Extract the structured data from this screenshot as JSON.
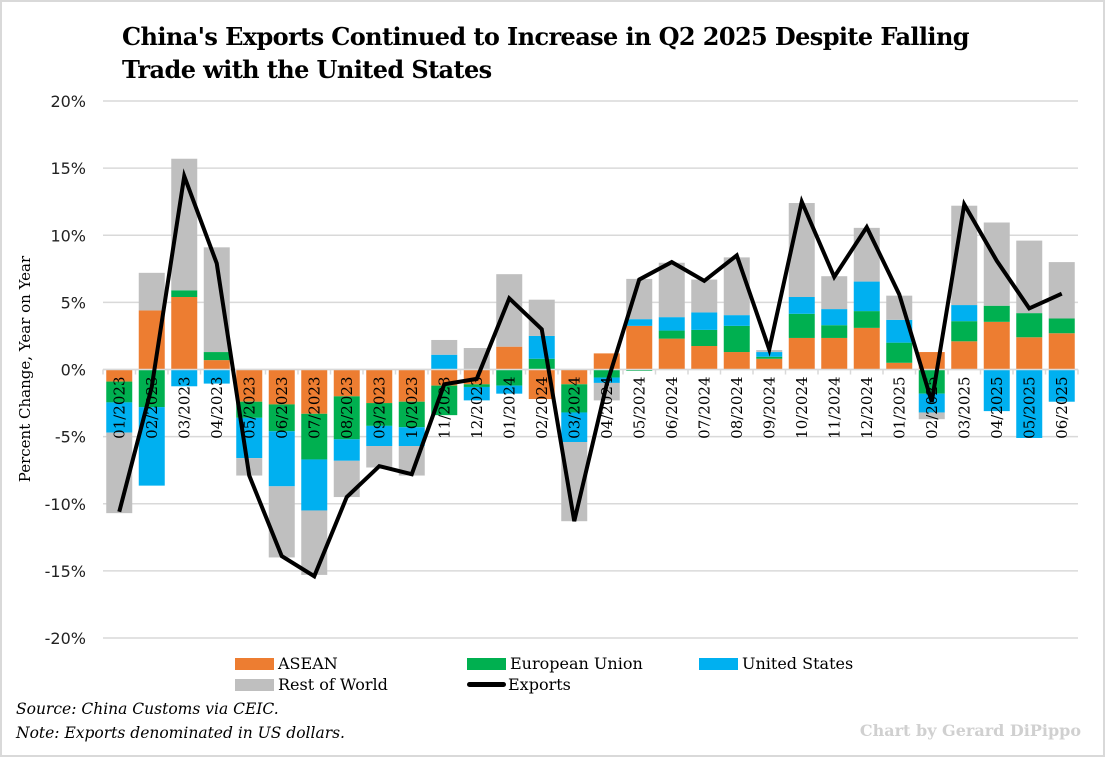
{
  "chart_data": {
    "type": "bar",
    "subtype": "stacked-bar-with-line",
    "title": "China's Exports Continued to Increase in Q2 2025 Despite Falling Trade with the United States",
    "xlabel": "",
    "ylabel": "Percent Change, Year on Year",
    "ylim": [
      -20,
      20
    ],
    "yticks": [
      20,
      15,
      10,
      5,
      0,
      -5,
      -10,
      -15,
      -20
    ],
    "ytick_labels": [
      "20%",
      "15%",
      "10%",
      "5%",
      "0%",
      "-5%",
      "-10%",
      "-15%",
      "-20%"
    ],
    "grid": true,
    "legend_position": "bottom",
    "categories": [
      "01/2023",
      "02/2023",
      "03/2023",
      "04/2023",
      "05/2023",
      "06/2023",
      "07/2023",
      "08/2023",
      "09/2023",
      "10/2023",
      "11/2023",
      "12/2023",
      "01/2024",
      "02/2024",
      "03/2024",
      "04/2024",
      "05/2024",
      "06/2024",
      "07/2024",
      "08/2024",
      "09/2024",
      "10/2024",
      "11/2024",
      "12/2024",
      "01/2025",
      "02/2025",
      "03/2025",
      "04/2025",
      "05/2025",
      "06/2025"
    ],
    "series": [
      {
        "name": "ASEAN",
        "kind": "bar",
        "color": "#ED7D31",
        "values": [
          -0.9,
          4.4,
          5.4,
          0.7,
          -2.4,
          -2.6,
          -3.3,
          -2.0,
          -2.5,
          -2.4,
          -1.2,
          -1.1,
          1.7,
          -2.2,
          -1.1,
          1.2,
          3.25,
          2.3,
          1.75,
          1.3,
          0.8,
          2.35,
          2.35,
          3.1,
          0.5,
          1.3,
          2.1,
          3.55,
          2.4,
          2.7
        ]
      },
      {
        "name": "European Union",
        "kind": "bar",
        "color": "#00B050",
        "values": [
          -1.55,
          -2.8,
          0.5,
          0.6,
          -1.2,
          -2.0,
          -3.4,
          -3.2,
          -1.7,
          -1.9,
          -2.2,
          -0.2,
          -1.2,
          0.8,
          -2.1,
          -0.6,
          -0.1,
          0.6,
          1.2,
          1.95,
          0.15,
          1.8,
          0.95,
          1.25,
          1.5,
          -1.8,
          1.5,
          1.2,
          1.8,
          1.1
        ]
      },
      {
        "name": "United States",
        "kind": "bar",
        "color": "#00B0F0",
        "values": [
          -2.25,
          -5.85,
          -1.25,
          -1.05,
          -3.0,
          -4.1,
          -3.8,
          -1.6,
          -1.5,
          -1.4,
          1.1,
          -1.0,
          -0.6,
          1.7,
          -2.2,
          -0.4,
          0.5,
          1.0,
          1.3,
          0.8,
          0.35,
          1.25,
          1.2,
          2.2,
          1.7,
          -1.4,
          1.2,
          -3.1,
          -5.1,
          -2.4
        ]
      },
      {
        "name": "Rest of World",
        "kind": "bar",
        "color": "#BFBFBF",
        "values": [
          -6.0,
          2.8,
          9.8,
          7.8,
          -1.3,
          -5.3,
          -4.8,
          -2.7,
          -1.6,
          -2.2,
          1.1,
          1.6,
          5.4,
          2.7,
          -5.9,
          -1.3,
          3.0,
          4.05,
          2.45,
          4.3,
          0.15,
          7.0,
          2.45,
          4.0,
          1.8,
          -0.5,
          7.4,
          6.2,
          5.4,
          4.2
        ]
      },
      {
        "name": "Exports",
        "kind": "line",
        "color": "#000000",
        "values": [
          -10.6,
          -1.3,
          14.4,
          7.9,
          -7.9,
          -13.9,
          -15.4,
          -9.5,
          -7.2,
          -7.8,
          -1.1,
          -0.7,
          5.3,
          3.0,
          -11.3,
          -1.1,
          6.7,
          8.0,
          6.6,
          8.5,
          1.5,
          12.5,
          6.9,
          10.6,
          5.6,
          -2.4,
          12.3,
          8.1,
          4.55,
          5.65
        ]
      }
    ]
  },
  "legend": {
    "items": [
      {
        "label": "ASEAN",
        "color": "#ED7D31",
        "kind": "bar"
      },
      {
        "label": "European Union",
        "color": "#00B050",
        "kind": "bar"
      },
      {
        "label": "United States",
        "color": "#00B0F0",
        "kind": "bar"
      },
      {
        "label": "Rest of World",
        "color": "#BFBFBF",
        "kind": "bar"
      },
      {
        "label": "Exports",
        "color": "#000000",
        "kind": "line"
      }
    ]
  },
  "footnotes": {
    "source": "Source: China Customs via CEIC.",
    "note": "Note: Exports denominated in US dollars."
  },
  "credit": "Chart by Gerard DiPippo"
}
